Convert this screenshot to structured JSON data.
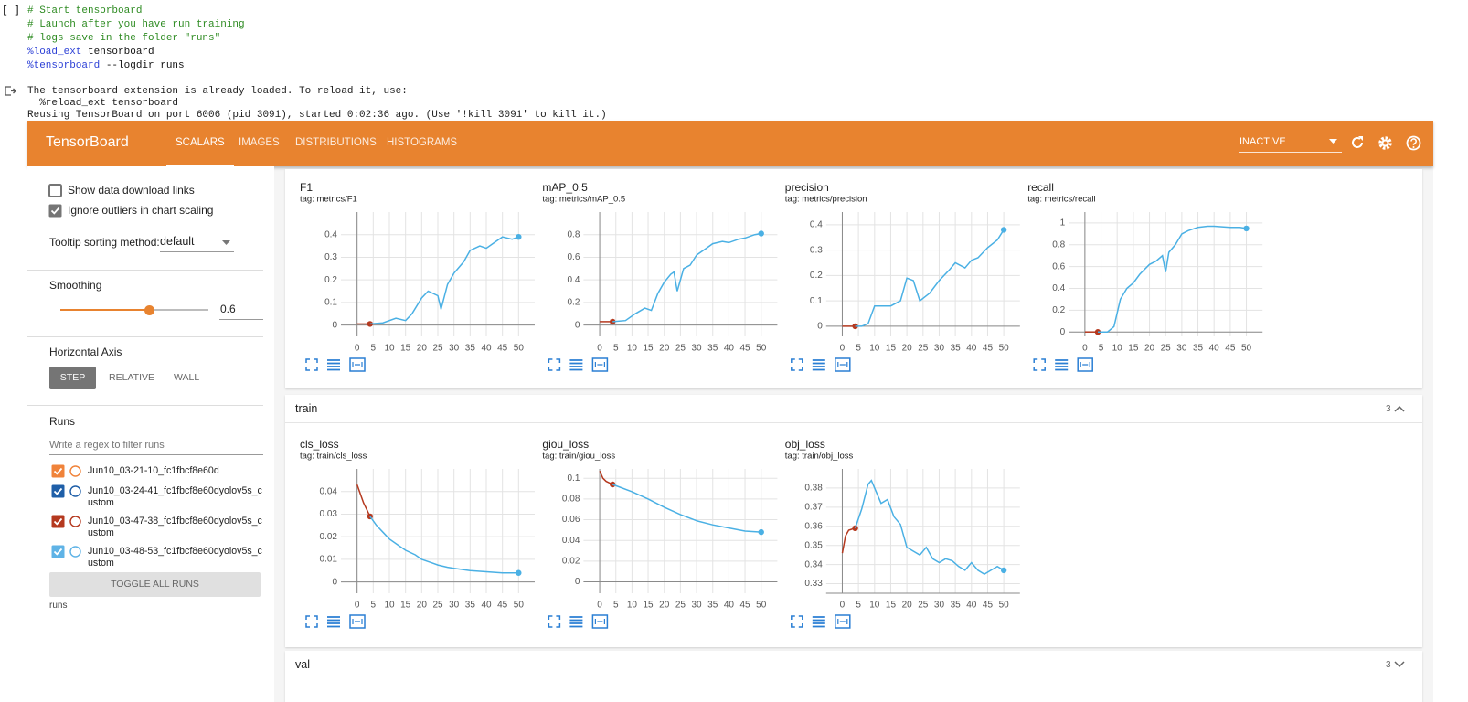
{
  "cell": {
    "prompt": "[ ]",
    "lines": [
      [
        {
          "text": "# Start tensorboard",
          "color": "#2e8b22"
        }
      ],
      [
        {
          "text": "# Launch after you have run training",
          "color": "#2e8b22"
        }
      ],
      [
        {
          "text": "# logs save in the folder \"runs\"",
          "color": "#2e8b22"
        }
      ],
      [
        {
          "text": "%load_ext",
          "color": "#2b3fd6"
        },
        {
          "text": " tensorboard"
        }
      ],
      [
        {
          "text": "%tensorboard",
          "color": "#2b3fd6"
        },
        {
          "text": " --logdir runs"
        }
      ]
    ]
  },
  "output": {
    "lines": [
      "The tensorboard extension is already loaded. To reload it, use:",
      "  %reload_ext tensorboard",
      "Reusing TensorBoard on port 6006 (pid 3091), started 0:02:36 ago. (Use '!kill 3091' to kill it.)"
    ]
  },
  "tensorboard": {
    "brand": "TensorBoard",
    "tabs": [
      "SCALARS",
      "IMAGES",
      "DISTRIBUTIONS",
      "HISTOGRAMS"
    ],
    "active_tab": 0,
    "status": "INACTIVE",
    "color": "#e8832f"
  },
  "sidebar": {
    "options": [
      {
        "label": "Show data download links",
        "checked": false
      },
      {
        "label": "Ignore outliers in chart scaling",
        "checked": true
      }
    ],
    "tooltip_label": "Tooltip sorting method:",
    "tooltip_value": "default",
    "smoothing_label": "Smoothing",
    "smoothing_value": 0.6,
    "axis_label": "Horizontal Axis",
    "axis_options": [
      "STEP",
      "RELATIVE",
      "WALL"
    ],
    "axis_selected": 0,
    "runs_label": "Runs",
    "runs_filter_placeholder": "Write a regex to filter runs",
    "runs": [
      {
        "name": "Jun10_03-21-10_fc1fbcf8e60d",
        "color": "#f0833a",
        "checked": true
      },
      {
        "name": "Jun10_03-24-41_fc1fbcf8e60dyolov5s_custom",
        "color": "#1f5fa8",
        "checked": true
      },
      {
        "name": "Jun10_03-47-38_fc1fbcf8e60dyolov5s_custom",
        "color": "#b5391f",
        "checked": true
      },
      {
        "name": "Jun10_03-48-53_fc1fbcf8e60dyolov5s_custom",
        "color": "#5fb3e6",
        "checked": true
      }
    ],
    "toggle": "TOGGLE ALL RUNS",
    "footer": "runs"
  },
  "sections": [
    {
      "charts": [
        {
          "type": "line",
          "title": "F1",
          "tag": "tag: metrics/F1",
          "xlim": [
            -5,
            55
          ],
          "xticks": [
            0,
            5,
            10,
            15,
            20,
            25,
            30,
            35,
            40,
            45,
            50
          ],
          "ylim": [
            -0.05,
            0.5
          ],
          "yticks": [
            0,
            0.1,
            0.2,
            0.3,
            0.4
          ],
          "grid": true,
          "series": [
            {
              "color": "#b5391f",
              "x": [
                0,
                4
              ],
              "values": [
                0.005,
                0.005
              ]
            },
            {
              "color": "#4ab0e4",
              "x": [
                4,
                8,
                12,
                15,
                17,
                20,
                22,
                25,
                26,
                28,
                30,
                33,
                35,
                38,
                40,
                43,
                45,
                48,
                50
              ],
              "values": [
                0.005,
                0.01,
                0.03,
                0.02,
                0.05,
                0.12,
                0.15,
                0.13,
                0.07,
                0.18,
                0.23,
                0.28,
                0.33,
                0.35,
                0.34,
                0.37,
                0.39,
                0.38,
                0.39
              ]
            }
          ]
        },
        {
          "type": "line",
          "title": "mAP_0.5",
          "tag": "tag: metrics/mAP_0.5",
          "xlim": [
            -5,
            55
          ],
          "xticks": [
            0,
            5,
            10,
            15,
            20,
            25,
            30,
            35,
            40,
            45,
            50
          ],
          "ylim": [
            -0.1,
            1.0
          ],
          "yticks": [
            0,
            0.2,
            0.4,
            0.6,
            0.8
          ],
          "grid": true,
          "series": [
            {
              "color": "#b5391f",
              "x": [
                0,
                4
              ],
              "values": [
                0.03,
                0.03
              ]
            },
            {
              "color": "#4ab0e4",
              "x": [
                4,
                8,
                11,
                14,
                16,
                18,
                20,
                22,
                23,
                24,
                26,
                28,
                30,
                33,
                35,
                38,
                40,
                43,
                45,
                48,
                50
              ],
              "values": [
                0.03,
                0.04,
                0.1,
                0.15,
                0.13,
                0.28,
                0.38,
                0.45,
                0.47,
                0.3,
                0.5,
                0.53,
                0.62,
                0.68,
                0.72,
                0.74,
                0.73,
                0.76,
                0.77,
                0.8,
                0.81
              ]
            }
          ]
        },
        {
          "type": "line",
          "title": "precision",
          "tag": "tag: metrics/precision",
          "xlim": [
            -5,
            55
          ],
          "xticks": [
            0,
            5,
            10,
            15,
            20,
            25,
            30,
            35,
            40,
            45,
            50
          ],
          "ylim": [
            -0.04,
            0.45
          ],
          "yticks": [
            0,
            0.1,
            0.2,
            0.3,
            0.4
          ],
          "grid": true,
          "series": [
            {
              "color": "#b5391f",
              "x": [
                0,
                4
              ],
              "values": [
                0,
                0
              ]
            },
            {
              "color": "#4ab0e4",
              "x": [
                4,
                6,
                8,
                10,
                13,
                15,
                18,
                20,
                22,
                24,
                27,
                30,
                33,
                35,
                38,
                40,
                42,
                45,
                48,
                50
              ],
              "values": [
                0,
                0,
                0.01,
                0.08,
                0.08,
                0.08,
                0.1,
                0.19,
                0.18,
                0.1,
                0.13,
                0.18,
                0.22,
                0.25,
                0.23,
                0.26,
                0.27,
                0.31,
                0.34,
                0.38
              ]
            }
          ]
        },
        {
          "type": "line",
          "title": "recall",
          "tag": "tag: metrics/recall",
          "xlim": [
            -5,
            55
          ],
          "xticks": [
            0,
            5,
            10,
            15,
            20,
            25,
            30,
            35,
            40,
            45,
            50
          ],
          "ylim": [
            -0.04,
            1.1
          ],
          "yticks": [
            0,
            0.2,
            0.4,
            0.6,
            0.8,
            1
          ],
          "grid": true,
          "series": [
            {
              "color": "#b5391f",
              "x": [
                0,
                4
              ],
              "values": [
                0,
                0
              ]
            },
            {
              "color": "#4ab0e4",
              "x": [
                4,
                7,
                9,
                11,
                13,
                15,
                17,
                20,
                22,
                24,
                25,
                26,
                28,
                30,
                32,
                35,
                38,
                40,
                45,
                48,
                50
              ],
              "values": [
                0,
                0,
                0.05,
                0.3,
                0.4,
                0.45,
                0.53,
                0.62,
                0.65,
                0.7,
                0.55,
                0.73,
                0.8,
                0.9,
                0.93,
                0.96,
                0.97,
                0.97,
                0.96,
                0.96,
                0.95
              ]
            }
          ]
        }
      ]
    },
    {
      "name": "train",
      "count": 3,
      "charts": [
        {
          "type": "line",
          "title": "cls_loss",
          "tag": "tag: train/cls_loss",
          "xlim": [
            -5,
            55
          ],
          "xticks": [
            0,
            5,
            10,
            15,
            20,
            25,
            30,
            35,
            40,
            45,
            50
          ],
          "ylim": [
            -0.005,
            0.05
          ],
          "yticks": [
            0,
            0.01,
            0.02,
            0.03,
            0.04
          ],
          "grid": true,
          "series": [
            {
              "color": "#b5391f",
              "x": [
                0,
                1,
                2,
                3,
                4
              ],
              "values": [
                0.043,
                0.039,
                0.035,
                0.032,
                0.029
              ]
            },
            {
              "color": "#4ab0e4",
              "x": [
                4,
                6,
                8,
                10,
                13,
                15,
                18,
                20,
                23,
                25,
                28,
                30,
                35,
                40,
                45,
                50
              ],
              "values": [
                0.029,
                0.025,
                0.022,
                0.019,
                0.016,
                0.014,
                0.012,
                0.01,
                0.0085,
                0.0075,
                0.0065,
                0.006,
                0.005,
                0.0045,
                0.004,
                0.004
              ]
            }
          ]
        },
        {
          "type": "line",
          "title": "giou_loss",
          "tag": "tag: train/giou_loss",
          "xlim": [
            -5,
            55
          ],
          "xticks": [
            0,
            5,
            10,
            15,
            20,
            25,
            30,
            35,
            40,
            45,
            50
          ],
          "ylim": [
            -0.011,
            0.109
          ],
          "yticks": [
            0,
            0.02,
            0.04,
            0.06,
            0.08,
            0.1
          ],
          "grid": true,
          "series": [
            {
              "color": "#b5391f",
              "x": [
                0,
                1,
                2,
                4
              ],
              "values": [
                0.107,
                0.1,
                0.097,
                0.094
              ]
            },
            {
              "color": "#4ab0e4",
              "x": [
                4,
                10,
                15,
                20,
                25,
                30,
                35,
                40,
                45,
                50
              ],
              "values": [
                0.094,
                0.087,
                0.08,
                0.072,
                0.065,
                0.059,
                0.055,
                0.052,
                0.049,
                0.048
              ]
            }
          ]
        },
        {
          "type": "line",
          "title": "obj_loss",
          "tag": "tag: train/obj_loss",
          "xlim": [
            -5,
            55
          ],
          "xticks": [
            0,
            5,
            10,
            15,
            20,
            25,
            30,
            35,
            40,
            45,
            50
          ],
          "ylim": [
            0.325,
            0.39
          ],
          "yticks": [
            0.33,
            0.34,
            0.35,
            0.36,
            0.37,
            0.38
          ],
          "grid": true,
          "series": [
            {
              "color": "#b5391f",
              "x": [
                0,
                1,
                2,
                3,
                4
              ],
              "values": [
                0.346,
                0.355,
                0.358,
                0.3585,
                0.359
              ]
            },
            {
              "color": "#4ab0e4",
              "x": [
                4,
                6,
                8,
                9,
                10,
                12,
                14,
                16,
                18,
                20,
                22,
                24,
                26,
                28,
                30,
                32,
                34,
                36,
                38,
                40,
                42,
                44,
                46,
                48,
                50
              ],
              "values": [
                0.359,
                0.369,
                0.382,
                0.384,
                0.38,
                0.372,
                0.374,
                0.365,
                0.361,
                0.349,
                0.347,
                0.345,
                0.349,
                0.343,
                0.341,
                0.343,
                0.342,
                0.339,
                0.337,
                0.341,
                0.337,
                0.335,
                0.337,
                0.339,
                0.337
              ]
            }
          ]
        }
      ]
    },
    {
      "name": "val",
      "count": 3
    }
  ]
}
